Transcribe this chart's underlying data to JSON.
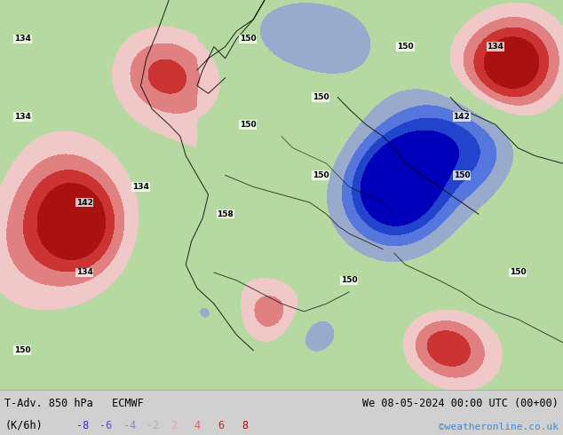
{
  "title_left": "T-Adv. 850 hPa   ECMWF",
  "title_right": "We 08-05-2024 00:00 UTC (00+00)",
  "unit_label": "(K/6h)",
  "website": "©weatheronline.co.uk",
  "footer_bg": "#d0d0d0",
  "fig_width": 6.34,
  "fig_height": 4.9,
  "dpi": 100,
  "neg_values": [
    "-8",
    "-6",
    "-4",
    "-2"
  ],
  "pos_values": [
    "2",
    "4",
    "6",
    "8"
  ],
  "neg_text_colors": [
    "#3333aa",
    "#5555bb",
    "#8888bb",
    "#aaaacc"
  ],
  "pos_text_colors": [
    "#ddaaaa",
    "#dd6655",
    "#cc2222",
    "#991111"
  ],
  "map_green": "#b5d9a0",
  "map_lightpink": "#f0c0c0",
  "map_pink": "#e08080",
  "map_red": "#cc3333",
  "map_darkred": "#aa1111",
  "map_lightblue": "#c0c8e0",
  "map_blue": "#7080cc",
  "map_darkblue": "#2233aa",
  "map_gray": "#c8c8c8",
  "footer_text_color": "#000000",
  "website_color": "#4488cc"
}
